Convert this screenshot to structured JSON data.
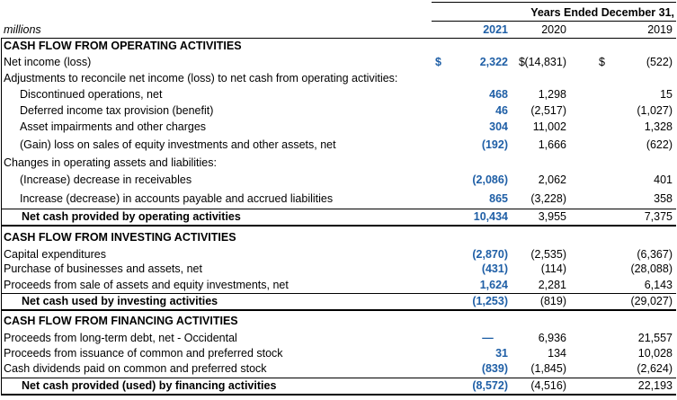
{
  "header": {
    "units": "millions",
    "period_title": "Years Ended December 31,",
    "years": [
      "2021",
      "2020",
      "2019"
    ]
  },
  "currency_symbol": "$",
  "colors": {
    "current_year": "#1f5fa6",
    "text": "#000000"
  },
  "rows": [
    {
      "label": "CASH FLOW FROM OPERATING ACTIVITIES",
      "values": [
        "",
        "",
        ""
      ],
      "type": "section"
    },
    {
      "label": "Net income (loss)",
      "values": [
        "2,322",
        "(14,831)",
        "(522)"
      ],
      "type": "currency"
    },
    {
      "label": "Adjustments to reconcile net income (loss) to net cash from operating activities:",
      "values": [
        "",
        "",
        ""
      ],
      "type": "label"
    },
    {
      "label": "Discontinued operations, net",
      "values": [
        "468",
        "1,298",
        "15"
      ],
      "type": "indent"
    },
    {
      "label": "Deferred income tax provision (benefit)",
      "values": [
        "46",
        "(2,517)",
        "(1,027)"
      ],
      "type": "indent"
    },
    {
      "label": "Asset impairments and other charges",
      "values": [
        "304",
        "11,002",
        "1,328"
      ],
      "type": "indent"
    },
    {
      "label": "(Gain) loss on sales of equity investments and other assets, net",
      "values": [
        "(192)",
        "1,666",
        "(622)"
      ],
      "type": "indent"
    },
    {
      "label": "Changes in operating assets and liabilities:",
      "values": [
        "",
        "",
        ""
      ],
      "type": "label"
    },
    {
      "label": "(Increase) decrease in receivables",
      "values": [
        "(2,086)",
        "2,062",
        "401"
      ],
      "type": "indent"
    },
    {
      "label": "Increase (decrease) in accounts payable and accrued liabilities",
      "values": [
        "865",
        "(3,228)",
        "358"
      ],
      "type": "indent"
    },
    {
      "label": "Net cash provided by operating activities",
      "values": [
        "10,434",
        "3,955",
        "7,375"
      ],
      "type": "total"
    },
    {
      "label": "CASH FLOW FROM INVESTING ACTIVITIES",
      "values": [
        "",
        "",
        ""
      ],
      "type": "section"
    },
    {
      "label": "Capital expenditures",
      "values": [
        "(2,870)",
        "(2,535)",
        "(6,367)"
      ],
      "type": "normal"
    },
    {
      "label": "Purchase of businesses and assets, net",
      "values": [
        "(431)",
        "(114)",
        "(28,088)"
      ],
      "type": "normal"
    },
    {
      "label": "Proceeds from sale of assets and equity investments, net",
      "values": [
        "1,624",
        "2,281",
        "6,143"
      ],
      "type": "normal"
    },
    {
      "label": "Net cash used by investing activities",
      "values": [
        "(1,253)",
        "(819)",
        "(29,027)"
      ],
      "type": "total"
    },
    {
      "label": "CASH FLOW FROM FINANCING ACTIVITIES",
      "values": [
        "",
        "",
        ""
      ],
      "type": "section"
    },
    {
      "label": "Proceeds from long-term debt, net - Occidental",
      "values": [
        "—",
        "6,936",
        "21,557"
      ],
      "type": "normal"
    },
    {
      "label": "Proceeds from issuance of common and preferred stock",
      "values": [
        "31",
        "134",
        "10,028"
      ],
      "type": "normal"
    },
    {
      "label": "Cash dividends paid on common and preferred stock",
      "values": [
        "(839)",
        "(1,845)",
        "(2,624)"
      ],
      "type": "normal"
    },
    {
      "label": "Net cash provided (used) by financing activities",
      "values": [
        "(8,572)",
        "(4,516)",
        "22,193"
      ],
      "type": "total"
    }
  ]
}
